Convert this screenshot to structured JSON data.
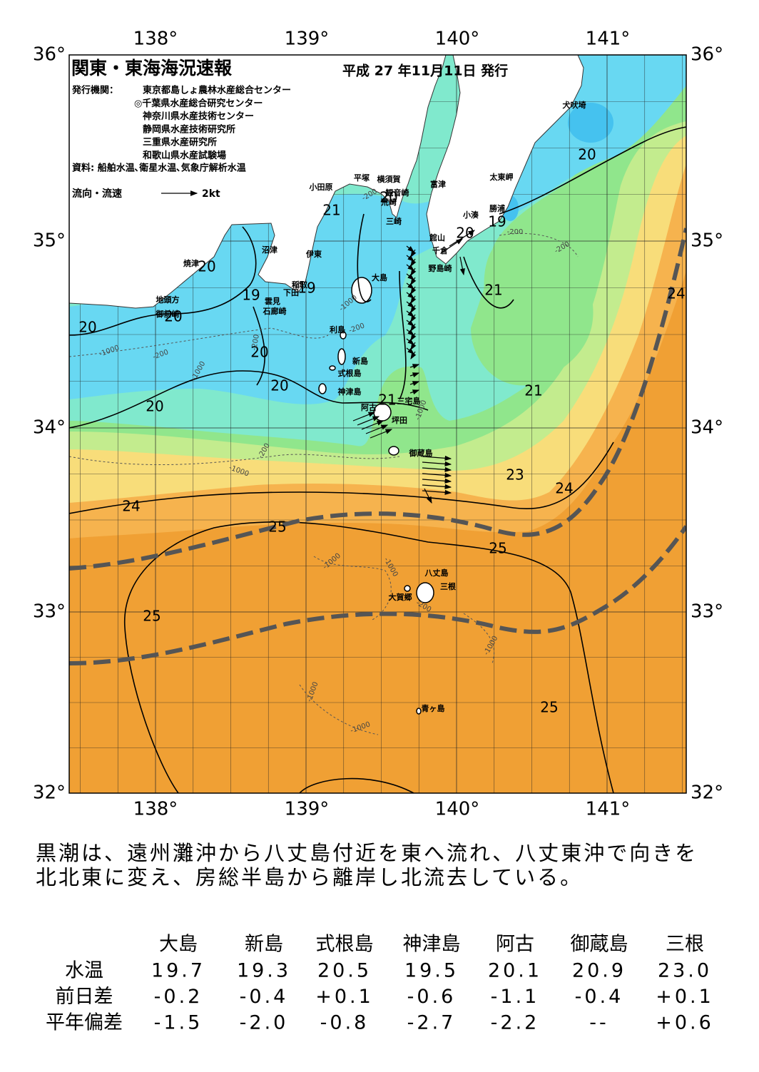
{
  "header": {
    "title": "関東・東海海況速報",
    "issued": "平成 27 年11月11日 発行"
  },
  "issuers": {
    "label": "発行機関：",
    "agencies": [
      "東京都島しょ農林水産総合センター",
      "◎千葉県水産総合研究センター",
      "神奈川県水産技術センター",
      "静岡県水産技術研究所",
      "三重県水産研究所",
      "和歌山県水産試験場"
    ]
  },
  "sources": "資料: 船舶水温､衛星水温､気象庁解析水温",
  "legend": {
    "label": "流向・流速",
    "scale": "2kt"
  },
  "map": {
    "lon_labels_top": [
      "138°",
      "139°",
      "140°",
      "141°"
    ],
    "lon_labels_bottom": [
      "138°",
      "139°",
      "140°",
      "141°"
    ],
    "lat_labels_left": [
      "36°",
      "35°",
      "34°",
      "33°",
      "32°"
    ],
    "lat_labels_right": [
      "36°",
      "35°",
      "34°",
      "33°",
      "32°"
    ],
    "places": [
      "犬吠埼",
      "太東岬",
      "勝浦",
      "小湊",
      "館山",
      "千倉",
      "野島崎",
      "富津",
      "横須賀",
      "観音崎",
      "平塚",
      "荒崎",
      "三崎",
      "小田原",
      "沼津",
      "伊東",
      "焼津",
      "稲取",
      "下田",
      "雲見",
      "石廊崎",
      "地頭方",
      "御前崎",
      "大島",
      "利島",
      "新島",
      "式根島",
      "神津島",
      "三宅島",
      "阿古",
      "坪田",
      "御蔵島",
      "八丈島",
      "三根",
      "大賀郷",
      "青ヶ島"
    ],
    "contour_labels": [
      "20",
      "21",
      "20",
      "20",
      "19",
      "20",
      "19",
      "19",
      "20",
      "20",
      "21",
      "24",
      "20",
      "20",
      "20",
      "21",
      "21",
      "23",
      "24",
      "24",
      "25",
      "25",
      "25",
      "25"
    ],
    "depth_labels": [
      "-200",
      "-1000",
      "-200",
      "-1000",
      "-200",
      "-1000",
      "-200",
      "-200",
      "-200",
      "-1000",
      "-200",
      "-1000",
      "-1000",
      "-1000",
      "-1000",
      "-200",
      "-1000",
      "-1000"
    ]
  },
  "summary": [
    "黒潮は、遠州灘沖から八丈島付近を東へ流れ、八丈東沖で向きを",
    "北北東に変え、房総半島から離岸し北流去している。"
  ],
  "table": {
    "columns": [
      "大島",
      "新島",
      "式根島",
      "神津島",
      "阿古",
      "御蔵島",
      "三根"
    ],
    "rows": [
      {
        "label": "水温",
        "values": [
          "19.7",
          "19.3",
          "20.5",
          "19.5",
          "20.1",
          "20.9",
          "23.0"
        ]
      },
      {
        "label": "前日差",
        "values": [
          "-0.2",
          "-0.4",
          "+0.1",
          "-0.6",
          "-1.1",
          "-0.4",
          "+0.1"
        ]
      },
      {
        "label": "平年偏差",
        "values": [
          "-1.5",
          "-2.0",
          "-0.8",
          "-2.7",
          "-2.2",
          "--",
          "+0.6"
        ]
      }
    ]
  }
}
